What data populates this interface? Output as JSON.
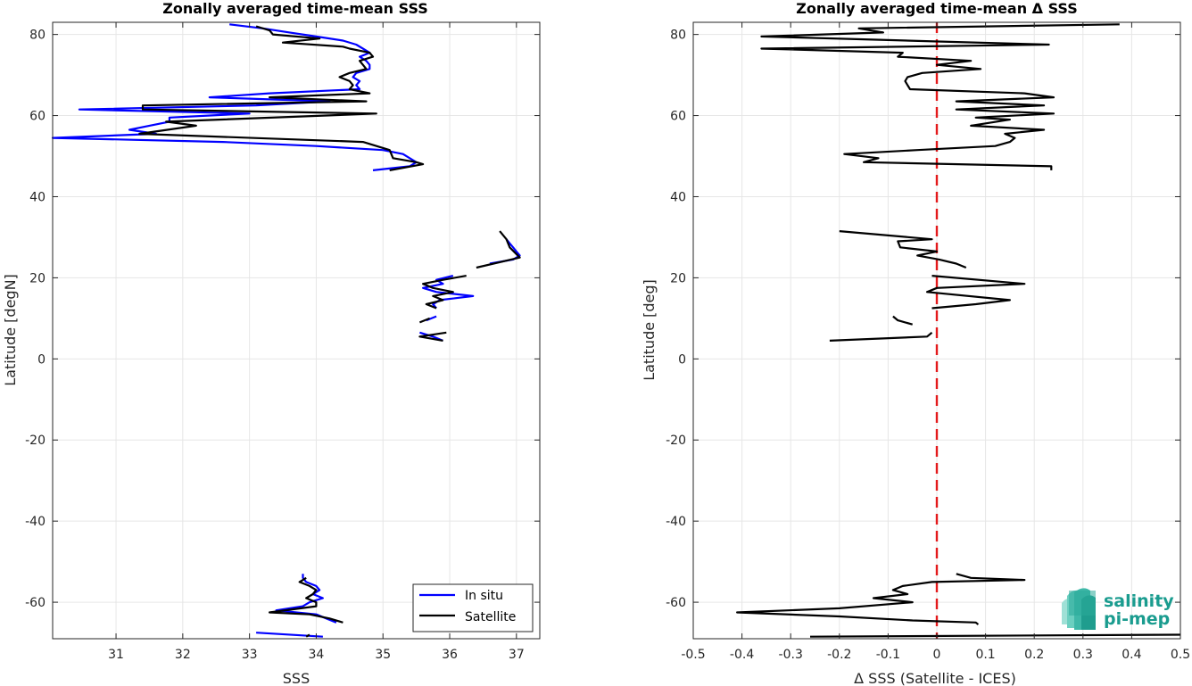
{
  "chart_data": [
    {
      "type": "line",
      "title": "Zonally averaged time-mean SSS",
      "xlabel": "SSS",
      "ylabel": "Latitude [degN]",
      "xlim": [
        30.05,
        37.35
      ],
      "ylim": [
        -69,
        83
      ],
      "xticks": [
        31,
        32,
        33,
        34,
        35,
        36,
        37
      ],
      "yticks": [
        -60,
        -40,
        -20,
        0,
        20,
        40,
        60,
        80
      ],
      "grid": true,
      "legend": {
        "placement": "bottom-right",
        "entries": [
          "In situ",
          "Satellite"
        ]
      },
      "series": [
        {
          "name": "In situ",
          "color": "#0000ff",
          "segments": [
            [
              [
                32.7,
                82.5
              ],
              [
                33.2,
                81.5
              ],
              [
                33.6,
                80.5
              ],
              [
                34.0,
                79.5
              ],
              [
                34.4,
                78.5
              ],
              [
                34.6,
                77.5
              ],
              [
                34.7,
                76.5
              ],
              [
                34.8,
                75.5
              ],
              [
                34.65,
                74.5
              ],
              [
                34.75,
                73.5
              ],
              [
                34.8,
                72.5
              ],
              [
                34.8,
                71.5
              ],
              [
                34.6,
                70.5
              ],
              [
                34.55,
                69.5
              ],
              [
                34.65,
                68.5
              ],
              [
                34.6,
                67.5
              ],
              [
                34.65,
                66.5
              ],
              [
                33.3,
                65.5
              ],
              [
                32.4,
                64.5
              ],
              [
                34.2,
                63.5
              ],
              [
                33.1,
                62.5
              ],
              [
                30.45,
                61.5
              ],
              [
                33.0,
                60.5
              ],
              [
                31.8,
                59.5
              ],
              [
                31.8,
                58.5
              ],
              [
                31.5,
                57.5
              ],
              [
                31.2,
                56.5
              ],
              [
                31.6,
                55.5
              ],
              [
                30.05,
                54.5
              ],
              [
                32.6,
                53.5
              ],
              [
                34.0,
                52.5
              ],
              [
                35.0,
                51.5
              ],
              [
                35.3,
                50.5
              ],
              [
                35.4,
                49.5
              ],
              [
                35.5,
                48.5
              ],
              [
                35.4,
                47.5
              ],
              [
                34.85,
                46.5
              ]
            ],
            [
              [
                36.85,
                29.5
              ],
              [
                36.9,
                28.5
              ],
              [
                36.95,
                27.5
              ],
              [
                37.0,
                26.5
              ],
              [
                37.05,
                25.5
              ],
              [
                36.95,
                24.5
              ],
              [
                36.6,
                23.5
              ]
            ],
            [
              [
                36.05,
                20.5
              ],
              [
                35.8,
                19.5
              ],
              [
                35.9,
                18.5
              ],
              [
                35.6,
                17.5
              ],
              [
                35.8,
                16.5
              ],
              [
                36.35,
                15.5
              ],
              [
                35.85,
                14.5
              ],
              [
                35.75,
                13.5
              ],
              [
                35.8,
                12.5
              ]
            ],
            [
              [
                35.8,
                10.5
              ],
              [
                35.65,
                9.5
              ]
            ],
            [
              [
                35.55,
                6.5
              ],
              [
                35.75,
                5.5
              ],
              [
                35.9,
                4.5
              ]
            ],
            [
              [
                33.8,
                -53.0
              ],
              [
                33.8,
                -54.0
              ],
              [
                33.85,
                -55.0
              ],
              [
                34.0,
                -56.0
              ],
              [
                34.05,
                -57.0
              ],
              [
                33.95,
                -58.0
              ],
              [
                34.1,
                -59.0
              ],
              [
                33.9,
                -60.0
              ],
              [
                33.8,
                -61.0
              ],
              [
                33.4,
                -62.0
              ],
              [
                34.0,
                -63.0
              ],
              [
                34.15,
                -64.0
              ],
              [
                34.3,
                -65.0
              ]
            ],
            [
              [
                33.1,
                -67.5
              ],
              [
                34.1,
                -68.5
              ]
            ]
          ]
        },
        {
          "name": "Satellite",
          "color": "#000000",
          "segments": [
            [
              [
                33.1,
                82.0
              ],
              [
                33.3,
                81.0
              ],
              [
                33.35,
                80.0
              ],
              [
                34.05,
                79.0
              ],
              [
                33.5,
                78.0
              ],
              [
                34.4,
                77.0
              ],
              [
                34.5,
                76.5
              ],
              [
                34.8,
                75.5
              ],
              [
                34.85,
                74.5
              ],
              [
                34.65,
                73.5
              ],
              [
                34.7,
                72.5
              ],
              [
                34.75,
                71.5
              ],
              [
                34.5,
                70.5
              ],
              [
                34.35,
                69.5
              ],
              [
                34.5,
                68.5
              ],
              [
                34.55,
                67.5
              ],
              [
                34.5,
                66.5
              ],
              [
                34.8,
                65.5
              ],
              [
                33.3,
                64.5
              ],
              [
                34.75,
                63.5
              ],
              [
                31.4,
                62.5
              ],
              [
                31.4,
                61.5
              ],
              [
                34.9,
                60.5
              ],
              [
                31.75,
                58.5
              ],
              [
                32.2,
                57.5
              ],
              [
                31.35,
                55.5
              ],
              [
                34.7,
                53.5
              ],
              [
                35.1,
                51.5
              ],
              [
                35.15,
                49.5
              ],
              [
                35.5,
                48.5
              ],
              [
                35.6,
                48.0
              ],
              [
                35.1,
                46.5
              ]
            ],
            [
              [
                36.75,
                31.5
              ],
              [
                36.85,
                29.5
              ],
              [
                36.9,
                27.5
              ],
              [
                37.05,
                25.0
              ],
              [
                36.4,
                22.5
              ]
            ],
            [
              [
                36.25,
                20.5
              ],
              [
                35.9,
                19.5
              ],
              [
                35.6,
                18.5
              ],
              [
                35.75,
                17.5
              ],
              [
                36.05,
                16.5
              ],
              [
                35.75,
                15.5
              ],
              [
                35.9,
                14.5
              ],
              [
                35.65,
                13.5
              ],
              [
                35.8,
                12.5
              ]
            ],
            [
              [
                35.7,
                10.0
              ],
              [
                35.55,
                9.0
              ]
            ],
            [
              [
                35.95,
                6.5
              ],
              [
                35.55,
                5.5
              ],
              [
                35.9,
                4.5
              ]
            ],
            [
              [
                33.85,
                -54.0
              ],
              [
                33.75,
                -55.0
              ],
              [
                33.9,
                -56.0
              ],
              [
                34.0,
                -57.0
              ],
              [
                33.95,
                -58.0
              ],
              [
                33.85,
                -59.0
              ],
              [
                34.0,
                -60.0
              ],
              [
                34.0,
                -61.0
              ],
              [
                33.3,
                -62.5
              ],
              [
                33.9,
                -63.0
              ],
              [
                34.2,
                -64.0
              ],
              [
                34.4,
                -65.0
              ]
            ],
            [
              [
                33.9,
                -68.0
              ],
              [
                33.85,
                -68.5
              ]
            ]
          ]
        }
      ]
    },
    {
      "type": "line",
      "title": "Zonally averaged time-mean Δ SSS",
      "xlabel": "Δ SSS (Satellite - ICES)",
      "ylabel": "Latitude [deg]",
      "xlim": [
        -0.5,
        0.5
      ],
      "ylim": [
        -69,
        83
      ],
      "xticks": [
        -0.5,
        -0.4,
        -0.3,
        -0.2,
        -0.1,
        0,
        0.1,
        0.2,
        0.3,
        0.4,
        0.5
      ],
      "xtick_labels": [
        "-0.5",
        "-0.4",
        "-0.3",
        "-0.2",
        "-0.1",
        "0",
        "0.1",
        "0.2",
        "0.3",
        "0.4",
        "0.5"
      ],
      "yticks": [
        -60,
        -40,
        -20,
        0,
        20,
        40,
        60,
        80
      ],
      "grid": true,
      "reference_line": {
        "x": 0,
        "color": "#e31a1c",
        "style": "dashed"
      },
      "series": [
        {
          "color": "#000000",
          "segments": [
            [
              [
                0.375,
                82.5
              ],
              [
                -0.16,
                81.5
              ],
              [
                -0.11,
                80.5
              ],
              [
                -0.36,
                79.5
              ],
              [
                0.23,
                77.5
              ],
              [
                -0.36,
                76.5
              ],
              [
                -0.07,
                75.5
              ],
              [
                -0.08,
                74.5
              ],
              [
                0.07,
                73.5
              ],
              [
                0.0,
                72.5
              ],
              [
                0.09,
                71.5
              ],
              [
                -0.03,
                70.5
              ],
              [
                -0.06,
                69.5
              ],
              [
                -0.065,
                68.5
              ],
              [
                -0.06,
                67.5
              ],
              [
                -0.055,
                66.5
              ],
              [
                0.18,
                65.5
              ],
              [
                0.24,
                64.5
              ],
              [
                0.04,
                63.5
              ],
              [
                0.22,
                62.5
              ],
              [
                0.04,
                61.5
              ],
              [
                0.24,
                60.5
              ],
              [
                0.08,
                59.5
              ],
              [
                0.15,
                59.0
              ],
              [
                0.07,
                57.5
              ],
              [
                0.22,
                56.5
              ],
              [
                0.14,
                55.5
              ],
              [
                0.16,
                54.5
              ],
              [
                0.15,
                53.5
              ],
              [
                0.12,
                52.5
              ],
              [
                -0.04,
                51.5
              ],
              [
                -0.19,
                50.5
              ],
              [
                -0.12,
                49.5
              ],
              [
                -0.15,
                48.5
              ],
              [
                0.235,
                47.5
              ],
              [
                0.235,
                46.5
              ]
            ],
            [
              [
                -0.2,
                31.5
              ],
              [
                -0.01,
                29.5
              ],
              [
                -0.08,
                29.0
              ],
              [
                -0.075,
                27.5
              ],
              [
                0.0,
                26.5
              ],
              [
                -0.04,
                25.5
              ],
              [
                0.005,
                24.5
              ],
              [
                0.04,
                23.5
              ],
              [
                0.06,
                22.5
              ]
            ],
            [
              [
                -0.01,
                20.5
              ],
              [
                0.18,
                18.5
              ],
              [
                0.0,
                17.5
              ],
              [
                -0.02,
                16.5
              ],
              [
                0.15,
                14.5
              ],
              [
                0.08,
                13.5
              ],
              [
                -0.01,
                12.5
              ]
            ],
            [
              [
                -0.09,
                10.5
              ],
              [
                -0.08,
                9.5
              ],
              [
                -0.05,
                8.5
              ]
            ],
            [
              [
                -0.01,
                6.5
              ],
              [
                -0.02,
                5.5
              ],
              [
                -0.22,
                4.5
              ]
            ],
            [
              [
                0.04,
                -53.0
              ],
              [
                0.07,
                -54.0
              ],
              [
                0.18,
                -54.5
              ],
              [
                -0.01,
                -55.0
              ],
              [
                -0.07,
                -56.0
              ],
              [
                -0.09,
                -57.0
              ],
              [
                -0.06,
                -58.0
              ],
              [
                -0.13,
                -59.0
              ],
              [
                -0.05,
                -60.0
              ],
              [
                -0.2,
                -61.5
              ],
              [
                -0.41,
                -62.5
              ],
              [
                -0.2,
                -63.5
              ],
              [
                -0.05,
                -64.5
              ],
              [
                0.08,
                -65.0
              ],
              [
                0.085,
                -65.5
              ]
            ],
            [
              [
                -0.26,
                -68.5
              ],
              [
                0.5,
                -68.0
              ]
            ]
          ]
        }
      ]
    }
  ],
  "legend": {
    "in_situ_label": "In situ",
    "satellite_label": "Satellite"
  },
  "logo": {
    "line1": "salinity",
    "line2": "pi-mep"
  }
}
